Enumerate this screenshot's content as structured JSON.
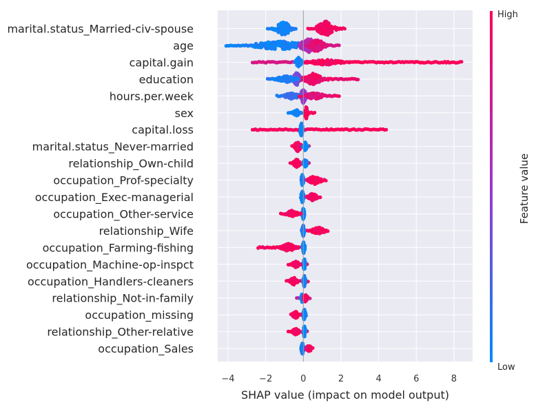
{
  "chart_data": {
    "type": "scatter",
    "subtype": "shap-beeswarm",
    "xlabel": "SHAP value (impact on model output)",
    "xlim": [
      -4.5,
      9.0
    ],
    "xticks": [
      -4,
      -2,
      0,
      2,
      4,
      6,
      8
    ],
    "grid": true,
    "colorbar": {
      "title": "Feature value",
      "high_label": "High",
      "low_label": "Low",
      "low_color": "#008bfb",
      "high_color": "#ff0052",
      "mid_color": "#9b37cf"
    },
    "features": [
      {
        "name": "marital.status_Married-civ-spouse",
        "clusters": [
          {
            "x": -1.05,
            "w": 0.7,
            "h": 0.85,
            "v": 0.05
          },
          {
            "x": 1.2,
            "w": 0.8,
            "h": 0.9,
            "v": 0.95
          }
        ],
        "spread": [
          {
            "from": -1.9,
            "to": -0.4,
            "v": 0.05
          },
          {
            "from": 0.25,
            "to": 2.2,
            "v": 0.95
          }
        ]
      },
      {
        "name": "age",
        "clusters": [
          {
            "x": -1.3,
            "w": 2.4,
            "h": 0.55,
            "v": 0.05
          },
          {
            "x": 0.3,
            "w": 0.8,
            "h": 0.85,
            "v": 0.6
          },
          {
            "x": 0.7,
            "w": 0.7,
            "h": 0.8,
            "v": 0.85
          }
        ],
        "spread": [
          {
            "from": -4.1,
            "to": -0.3,
            "v": 0.05
          },
          {
            "from": -0.3,
            "to": 1.9,
            "v": 0.8
          }
        ]
      },
      {
        "name": "capital.gain",
        "clusters": [
          {
            "x": -0.25,
            "w": 0.25,
            "h": 0.6,
            "v": 0.05
          },
          {
            "x": 1.2,
            "w": 1.5,
            "h": 0.35,
            "v": 0.95
          }
        ],
        "spread": [
          {
            "from": -2.7,
            "to": 0.1,
            "v": 0.8
          },
          {
            "from": 0.1,
            "to": 8.4,
            "v": 0.98
          }
        ]
      },
      {
        "name": "education",
        "clusters": [
          {
            "x": -0.35,
            "w": 0.35,
            "h": 0.8,
            "v": 0.4
          },
          {
            "x": 0.5,
            "w": 0.8,
            "h": 0.7,
            "v": 0.9
          },
          {
            "x": -0.9,
            "w": 0.9,
            "h": 0.4,
            "v": 0.1
          }
        ],
        "spread": [
          {
            "from": -1.9,
            "to": -0.2,
            "v": 0.1
          },
          {
            "from": -0.2,
            "to": 2.9,
            "v": 0.9
          }
        ]
      },
      {
        "name": "hours.per.week",
        "clusters": [
          {
            "x": 0.0,
            "w": 0.25,
            "h": 0.9,
            "v": 0.5
          },
          {
            "x": -0.6,
            "w": 0.7,
            "h": 0.4,
            "v": 0.15
          },
          {
            "x": 0.6,
            "w": 0.9,
            "h": 0.4,
            "v": 0.85
          }
        ],
        "spread": [
          {
            "from": -1.4,
            "to": -0.2,
            "v": 0.1
          },
          {
            "from": 0.2,
            "to": 1.9,
            "v": 0.9
          }
        ]
      },
      {
        "name": "sex",
        "clusters": [
          {
            "x": -0.35,
            "w": 0.3,
            "h": 0.35,
            "v": 0.05
          },
          {
            "x": 0.15,
            "w": 0.12,
            "h": 0.8,
            "v": 0.95
          }
        ],
        "spread": [
          {
            "from": -0.8,
            "to": -0.1,
            "v": 0.05
          },
          {
            "from": 0.1,
            "to": 0.6,
            "v": 0.95
          }
        ]
      },
      {
        "name": "capital.loss",
        "clusters": [
          {
            "x": -0.1,
            "w": 0.12,
            "h": 0.85,
            "v": 0.05
          }
        ],
        "spread": [
          {
            "from": -2.7,
            "to": 0.0,
            "v": 0.95
          },
          {
            "from": 0.1,
            "to": 4.4,
            "v": 0.97
          }
        ]
      },
      {
        "name": "marital.status_Never-married",
        "clusters": [
          {
            "x": -0.3,
            "w": 0.3,
            "h": 0.6,
            "v": 0.95
          },
          {
            "x": 0.1,
            "w": 0.15,
            "h": 0.5,
            "v": 0.05
          }
        ],
        "spread": [
          {
            "from": -0.6,
            "to": 0.3,
            "v": 0.9
          }
        ]
      },
      {
        "name": "relationship_Own-child",
        "clusters": [
          {
            "x": -0.35,
            "w": 0.3,
            "h": 0.5,
            "v": 0.95
          },
          {
            "x": 0.1,
            "w": 0.15,
            "h": 0.55,
            "v": 0.05
          }
        ],
        "spread": [
          {
            "from": -0.7,
            "to": 0.3,
            "v": 0.9
          }
        ]
      },
      {
        "name": "occupation_Prof-specialty",
        "clusters": [
          {
            "x": -0.05,
            "w": 0.1,
            "h": 0.7,
            "v": 0.05
          },
          {
            "x": 0.6,
            "w": 0.6,
            "h": 0.5,
            "v": 0.95
          }
        ],
        "spread": [
          {
            "from": 0.2,
            "to": 1.2,
            "v": 0.95
          }
        ]
      },
      {
        "name": "occupation_Exec-managerial",
        "clusters": [
          {
            "x": -0.05,
            "w": 0.12,
            "h": 0.7,
            "v": 0.05
          },
          {
            "x": 0.5,
            "w": 0.4,
            "h": 0.45,
            "v": 0.95
          }
        ],
        "spread": [
          {
            "from": 0.2,
            "to": 0.9,
            "v": 0.95
          }
        ]
      },
      {
        "name": "occupation_Other-service",
        "clusters": [
          {
            "x": 0.0,
            "w": 0.1,
            "h": 0.7,
            "v": 0.05
          },
          {
            "x": -0.6,
            "w": 0.5,
            "h": 0.4,
            "v": 0.95
          }
        ],
        "spread": [
          {
            "from": -1.2,
            "to": -0.2,
            "v": 0.95
          }
        ]
      },
      {
        "name": "relationship_Wife",
        "clusters": [
          {
            "x": 0.0,
            "w": 0.1,
            "h": 0.7,
            "v": 0.05
          },
          {
            "x": 0.8,
            "w": 0.6,
            "h": 0.45,
            "v": 0.95
          }
        ],
        "spread": [
          {
            "from": 0.2,
            "to": 1.3,
            "v": 0.95
          }
        ]
      },
      {
        "name": "occupation_Farming-fishing",
        "clusters": [
          {
            "x": 0.02,
            "w": 0.1,
            "h": 0.7,
            "v": 0.05
          },
          {
            "x": -0.8,
            "w": 0.6,
            "h": 0.5,
            "v": 0.95
          }
        ],
        "spread": [
          {
            "from": -2.4,
            "to": -0.2,
            "v": 0.95
          }
        ]
      },
      {
        "name": "occupation_Machine-op-inspct",
        "clusters": [
          {
            "x": 0.05,
            "w": 0.1,
            "h": 0.7,
            "v": 0.05
          },
          {
            "x": -0.4,
            "w": 0.3,
            "h": 0.4,
            "v": 0.95
          }
        ],
        "spread": [
          {
            "from": -0.8,
            "to": 0.2,
            "v": 0.95
          }
        ]
      },
      {
        "name": "occupation_Handlers-cleaners",
        "clusters": [
          {
            "x": 0.05,
            "w": 0.1,
            "h": 0.7,
            "v": 0.05
          },
          {
            "x": -0.5,
            "w": 0.35,
            "h": 0.45,
            "v": 0.95
          }
        ],
        "spread": [
          {
            "from": -0.9,
            "to": 0.25,
            "v": 0.95
          }
        ]
      },
      {
        "name": "relationship_Not-in-family",
        "clusters": [
          {
            "x": -0.05,
            "w": 0.12,
            "h": 0.6,
            "v": 0.05
          },
          {
            "x": 0.1,
            "w": 0.2,
            "h": 0.45,
            "v": 0.95
          }
        ],
        "spread": [
          {
            "from": -0.35,
            "to": 0.35,
            "v": 0.7
          }
        ]
      },
      {
        "name": "occupation_missing",
        "clusters": [
          {
            "x": 0.05,
            "w": 0.1,
            "h": 0.7,
            "v": 0.05
          },
          {
            "x": -0.4,
            "w": 0.3,
            "h": 0.4,
            "v": 0.95
          }
        ],
        "spread": [
          {
            "from": -0.6,
            "to": 0.1,
            "v": 0.95
          }
        ]
      },
      {
        "name": "relationship_Other-relative",
        "clusters": [
          {
            "x": 0.05,
            "w": 0.1,
            "h": 0.7,
            "v": 0.05
          },
          {
            "x": -0.4,
            "w": 0.3,
            "h": 0.4,
            "v": 0.95
          }
        ],
        "spread": [
          {
            "from": -0.8,
            "to": 0.2,
            "v": 0.95
          }
        ]
      },
      {
        "name": "occupation_Sales",
        "clusters": [
          {
            "x": -0.05,
            "w": 0.1,
            "h": 0.7,
            "v": 0.05
          },
          {
            "x": 0.3,
            "w": 0.25,
            "h": 0.4,
            "v": 0.95
          }
        ],
        "spread": [
          {
            "from": 0.1,
            "to": 0.5,
            "v": 0.95
          }
        ]
      }
    ]
  }
}
